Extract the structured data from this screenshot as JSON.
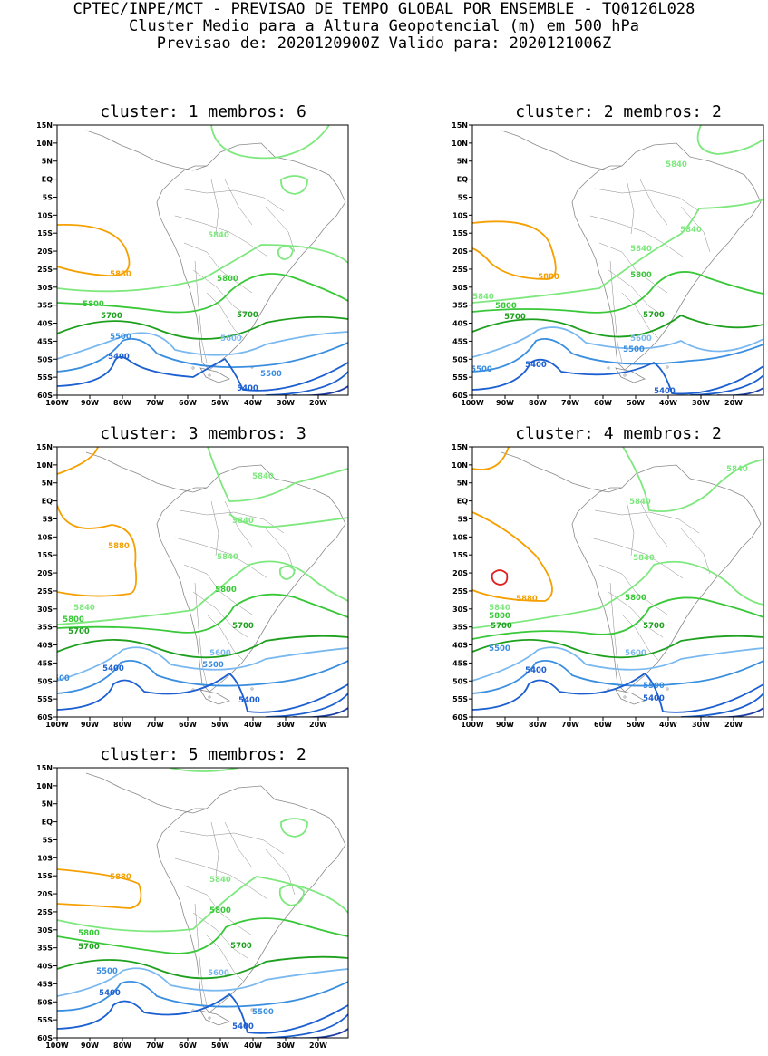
{
  "header": {
    "line1": "CPTEC/INPE/MCT - PREVISAO DE TEMPO GLOBAL POR ENSEMBLE - TQ0126L028",
    "line2": "Cluster Medio para a Altura Geopotencial (m) em 500 hPa",
    "line3": "Previsao de: 2020120900Z    Valido para: 2020121006Z"
  },
  "axes": {
    "lat_labels": [
      "15N",
      "10N",
      "5N",
      "EQ",
      "5S",
      "10S",
      "15S",
      "20S",
      "25S",
      "30S",
      "35S",
      "40S",
      "45S",
      "50S",
      "55S",
      "60S"
    ],
    "lon_labels": [
      "100W",
      "90W",
      "80W",
      "70W",
      "60W",
      "50W",
      "40W",
      "30W",
      "20W"
    ]
  },
  "colors": {
    "c5880": "#f5a000",
    "c5840": "#7ee87e",
    "c5800": "#38c838",
    "c5700": "#1ea01e",
    "c5600": "#7ab8f0",
    "c5500": "#3a8ee0",
    "c5400": "#1c5fd0",
    "deep": "#2040a8",
    "red": "#e02020",
    "land": "#8a8a8a"
  },
  "panels": [
    {
      "title": "cluster: 1   membros: 6",
      "labels": {
        "c5880": "5880",
        "c5840": "5840",
        "c5800a": "5800",
        "c5800b": "5800",
        "c5700a": "5700",
        "c5700b": "5700",
        "c5600": "5600",
        "c5500a": "5500",
        "c5500b": "5500",
        "c5400a": "5400",
        "c5400b": "5400"
      }
    },
    {
      "title": "cluster: 2   membros: 2",
      "labels": {
        "c5880": "5880",
        "c5840a": "5840",
        "c5840b": "5840",
        "c5840c": "5840",
        "c5840d": "5840",
        "c5800a": "5800",
        "c5800b": "5800",
        "c5700a": "5700",
        "c5700b": "5700",
        "c5600": "5600",
        "c5500a": "5500",
        "c5500b": "5500",
        "c5400a": "5400",
        "c5400b": "5400"
      }
    },
    {
      "title": "cluster: 3   membros: 3",
      "labels": {
        "c5880": "5880",
        "c5840a": "5840",
        "c5840b": "5840",
        "c5840c": "5840",
        "c5840d": "5840",
        "c5800a": "5800",
        "c5800b": "5800",
        "c5700a": "5700",
        "c5700b": "5700",
        "c5600": "5600",
        "c5500a": "5500",
        "c5500b": "5500",
        "c5400a": "5400",
        "c5400b": "5400"
      }
    },
    {
      "title": "cluster: 4   membros: 2",
      "labels": {
        "c5880": "5880",
        "c5840a": "5840",
        "c5840b": "5840",
        "c5840c": "5840",
        "c5840d": "5840",
        "c5800a": "5800",
        "c5800b": "5800",
        "c5700a": "5700",
        "c5700b": "5700",
        "c5600": "5600",
        "c5500a": "5500",
        "c5500b": "5500",
        "c5400a": "5400",
        "c5400b": "5400"
      }
    },
    {
      "title": "cluster: 5   membros: 2",
      "labels": {
        "c5880": "5880",
        "c5840": "5840",
        "c5800a": "5800",
        "c5800b": "5800",
        "c5700a": "5700",
        "c5700b": "5700",
        "c5600": "5600",
        "c5500a": "5500",
        "c5500b": "5500",
        "c5400a": "5400",
        "c5400b": "5400"
      }
    }
  ]
}
